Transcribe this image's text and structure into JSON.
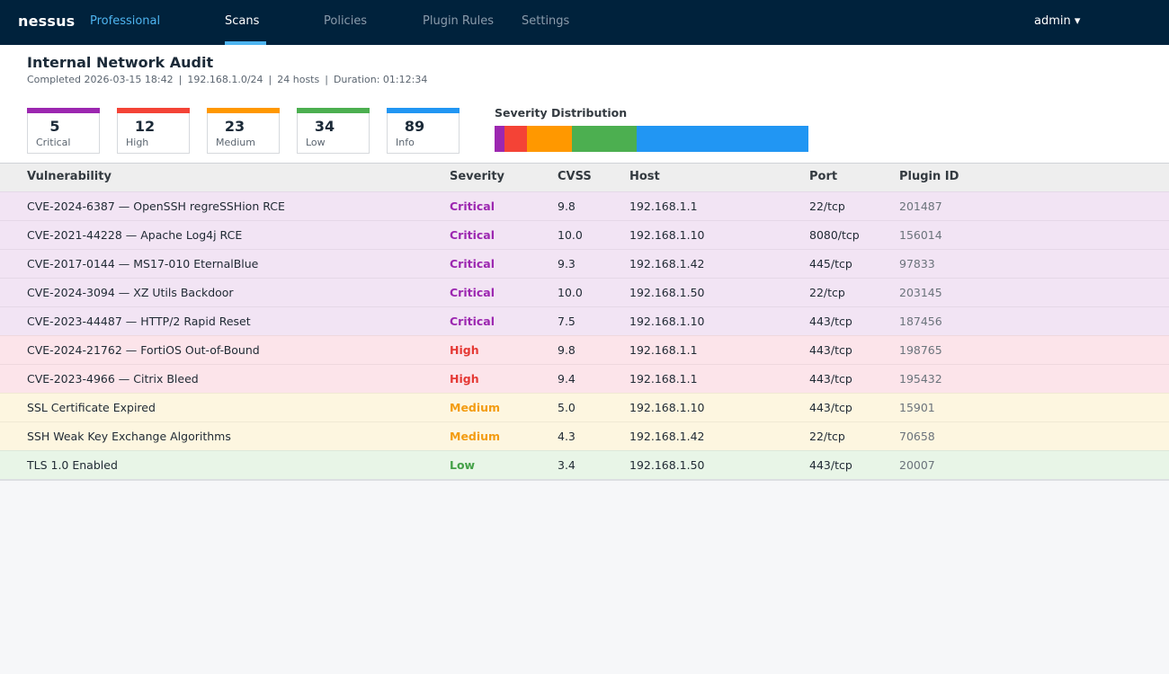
{
  "nav": {
    "brand": "nessus",
    "edition": "Professional",
    "tabs": [
      {
        "label": "Scans",
        "active": true
      },
      {
        "label": "Policies",
        "active": false
      },
      {
        "label": "Plugin Rules",
        "active": false
      },
      {
        "label": "Settings",
        "active": false
      }
    ],
    "user": "admin ▾"
  },
  "scan": {
    "title": "Internal Network Audit",
    "completed": "Completed 2026-03-15 18:42",
    "target": "192.168.1.0/24",
    "hosts": "24 hosts",
    "duration": "Duration: 01:12:34",
    "separator": "|"
  },
  "severity_counts": [
    {
      "count": "5",
      "label": "Critical",
      "color": "#9c27b0"
    },
    {
      "count": "12",
      "label": "High",
      "color": "#f44336"
    },
    {
      "count": "23",
      "label": "Medium",
      "color": "#ff9800"
    },
    {
      "count": "34",
      "label": "Low",
      "color": "#4caf50"
    },
    {
      "count": "89",
      "label": "Info",
      "color": "#2196f3"
    }
  ],
  "distribution": {
    "title": "Severity Distribution",
    "segments": [
      {
        "name": "Critical",
        "value": 5,
        "color": "#9c27b0"
      },
      {
        "name": "High",
        "value": 12,
        "color": "#f44336"
      },
      {
        "name": "Medium",
        "value": 23,
        "color": "#ff9800"
      },
      {
        "name": "Low",
        "value": 34,
        "color": "#4caf50"
      },
      {
        "name": "Info",
        "value": 89,
        "color": "#2196f3"
      }
    ]
  },
  "table": {
    "headers": {
      "vulnerability": "Vulnerability",
      "severity": "Severity",
      "cvss": "CVSS",
      "host": "Host",
      "port": "Port",
      "plugin": "Plugin ID"
    },
    "severity_colors": {
      "Critical": "#9c27b0",
      "High": "#e53935",
      "Medium": "#f39c12",
      "Low": "#43a047"
    },
    "rows": [
      {
        "name": "CVE-2024-6387 — OpenSSH regreSSHion RCE",
        "severity": "Critical",
        "cvss": "9.8",
        "host": "192.168.1.1",
        "port": "22/tcp",
        "plugin": "201487"
      },
      {
        "name": "CVE-2021-44228 — Apache Log4j RCE",
        "severity": "Critical",
        "cvss": "10.0",
        "host": "192.168.1.10",
        "port": "8080/tcp",
        "plugin": "156014"
      },
      {
        "name": "CVE-2017-0144 — MS17-010 EternalBlue",
        "severity": "Critical",
        "cvss": "9.3",
        "host": "192.168.1.42",
        "port": "445/tcp",
        "plugin": "97833"
      },
      {
        "name": "CVE-2024-3094 — XZ Utils Backdoor",
        "severity": "Critical",
        "cvss": "10.0",
        "host": "192.168.1.50",
        "port": "22/tcp",
        "plugin": "203145"
      },
      {
        "name": "CVE-2023-44487 — HTTP/2 Rapid Reset",
        "severity": "Critical",
        "cvss": "7.5",
        "host": "192.168.1.10",
        "port": "443/tcp",
        "plugin": "187456"
      },
      {
        "name": "CVE-2024-21762 — FortiOS Out-of-Bound",
        "severity": "High",
        "cvss": "9.8",
        "host": "192.168.1.1",
        "port": "443/tcp",
        "plugin": "198765"
      },
      {
        "name": "CVE-2023-4966 — Citrix Bleed",
        "severity": "High",
        "cvss": "9.4",
        "host": "192.168.1.1",
        "port": "443/tcp",
        "plugin": "195432"
      },
      {
        "name": "SSL Certificate Expired",
        "severity": "Medium",
        "cvss": "5.0",
        "host": "192.168.1.10",
        "port": "443/tcp",
        "plugin": "15901"
      },
      {
        "name": "SSH Weak Key Exchange Algorithms",
        "severity": "Medium",
        "cvss": "4.3",
        "host": "192.168.1.42",
        "port": "22/tcp",
        "plugin": "70658"
      },
      {
        "name": "TLS 1.0 Enabled",
        "severity": "Low",
        "cvss": "3.4",
        "host": "192.168.1.50",
        "port": "443/tcp",
        "plugin": "20007"
      }
    ]
  }
}
